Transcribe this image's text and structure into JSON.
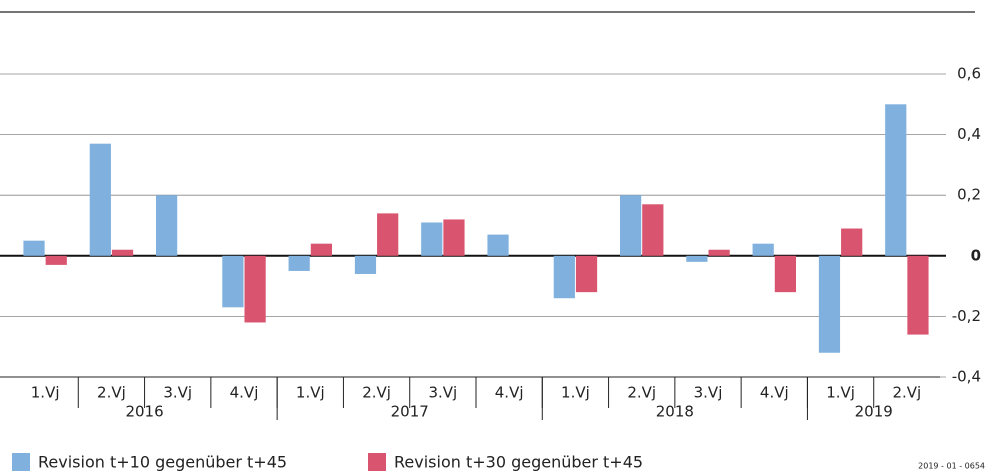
{
  "chart_data": {
    "type": "bar",
    "categories": [
      "1.Vj",
      "2.Vj",
      "3.Vj",
      "4.Vj",
      "1.Vj",
      "2.Vj",
      "3.Vj",
      "4.Vj",
      "1.Vj",
      "2.Vj",
      "3.Vj",
      "4.Vj",
      "1.Vj",
      "2.Vj"
    ],
    "group_labels": [
      "2016",
      "2017",
      "2018",
      "2019"
    ],
    "group_sizes": [
      4,
      4,
      4,
      2
    ],
    "series": [
      {
        "name": "Revision t+10 gegenüber t+45",
        "color": "#80b1de",
        "values": [
          0.05,
          0.37,
          0.2,
          -0.17,
          -0.05,
          -0.06,
          0.11,
          0.07,
          -0.14,
          0.2,
          -0.02,
          0.04,
          -0.32,
          0.5
        ]
      },
      {
        "name": "Revision t+30 gegenüber t+45",
        "color": "#d9556f",
        "values": [
          -0.03,
          0.02,
          0,
          -0.22,
          0.04,
          0.14,
          0.12,
          0,
          -0.12,
          0.17,
          0.02,
          -0.12,
          0.09,
          -0.26
        ]
      }
    ],
    "ylim": [
      -0.4,
      0.6
    ],
    "yticks": [
      {
        "value": -0.4,
        "label": "-0,4"
      },
      {
        "value": -0.2,
        "label": "-0,2"
      },
      0,
      {
        "value": 0.2,
        "label": "0,2"
      },
      {
        "value": 0.4,
        "label": "0,4"
      },
      {
        "value": 0.6,
        "label": "0,6"
      }
    ],
    "grid": true,
    "note": "2019 - 01 - 0654"
  }
}
